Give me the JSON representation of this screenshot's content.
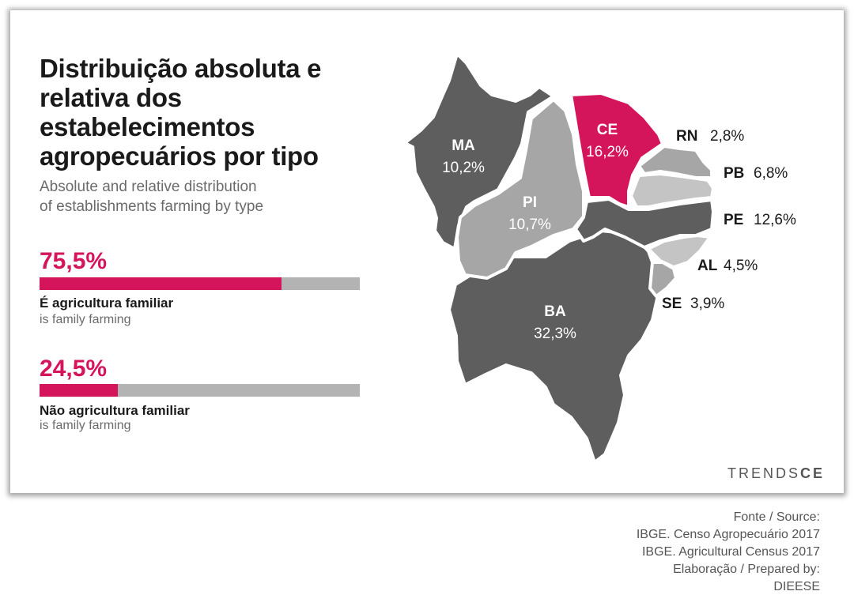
{
  "title": "Distribuição absoluta e relativa dos estabelecimentos agropecuários por tipo",
  "subtitle_lines": [
    "Absolute and relative distribution",
    "of establishments farming by type"
  ],
  "bars": [
    {
      "percent_label": "75,5%",
      "value": 75.5,
      "label_pt": "É agricultura familiar",
      "label_en": "is family farming"
    },
    {
      "percent_label": "24,5%",
      "value": 24.5,
      "label_pt": "Não agricultura familiar",
      "label_en": "is family farming"
    }
  ],
  "colors": {
    "accent": "#d5155b",
    "bar_track": "#b3b3b3",
    "dark_state": "#5e5e5e",
    "light_state": "#a6a6a6",
    "lighter_state": "#c4c4c4"
  },
  "chart_data": {
    "type": "map",
    "regions": [
      {
        "code": "MA",
        "value": 10.2,
        "label": "10,2%"
      },
      {
        "code": "PI",
        "value": 10.7,
        "label": "10,7%"
      },
      {
        "code": "CE",
        "value": 16.2,
        "label": "16,2%",
        "highlighted": true
      },
      {
        "code": "RN",
        "value": 2.8,
        "label": "2,8%"
      },
      {
        "code": "PB",
        "value": 6.8,
        "label": "6,8%"
      },
      {
        "code": "PE",
        "value": 12.6,
        "label": "12,6%"
      },
      {
        "code": "AL",
        "value": 4.5,
        "label": "4,5%"
      },
      {
        "code": "SE",
        "value": 3.9,
        "label": "3,9%"
      },
      {
        "code": "BA",
        "value": 32.3,
        "label": "32,3%"
      }
    ]
  },
  "brand": {
    "part1": "TRENDS",
    "part2": "CE"
  },
  "source_lines": [
    "Fonte / Source:",
    "IBGE. Censo Agropecuário 2017",
    "IBGE. Agricultural Census 2017",
    "Elaboração / Prepared by:",
    "DIEESE"
  ]
}
